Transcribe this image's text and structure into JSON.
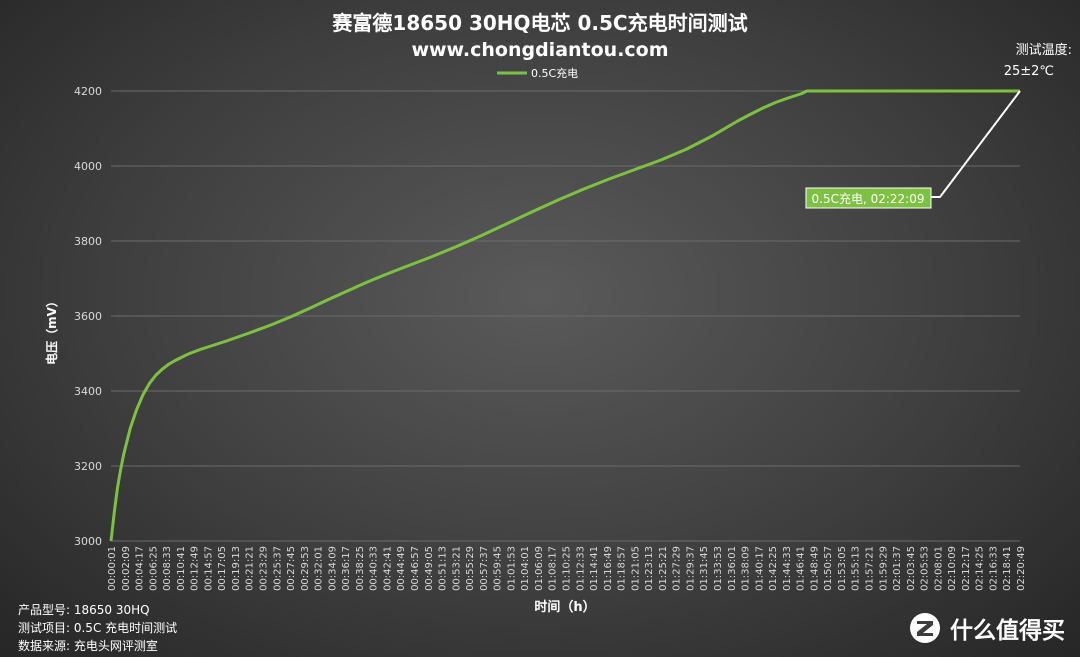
{
  "colors": {
    "series": "#7dc142",
    "grid": "#6b6b6b",
    "label_bg": "#7dc142",
    "leader": "#ffffff"
  },
  "temperature_note": {
    "line1": "测试温度:",
    "line2": "25±2℃"
  },
  "footer": {
    "model": "产品型号:  18650 30HQ",
    "project": "测试项目:  0.5C 充电时间测试",
    "source": "数据来源:  充电头网评测室"
  },
  "watermark": {
    "icon": "zhi-badge-icon",
    "text": "什么值得买"
  },
  "chart_data": {
    "type": "line",
    "title": "赛富德18650 30HQ电芯 0.5C充电时间测试",
    "subtitle": "www.chongdiantou.com",
    "xlabel": "时间（h）",
    "ylabel": "电压（mV）",
    "ylim": [
      3000,
      4200
    ],
    "yticks": [
      3000,
      3200,
      3400,
      3600,
      3800,
      4000,
      4200
    ],
    "grid": true,
    "legend_position": "top",
    "x_tick_labels": [
      "00:00:01",
      "00:02:09",
      "00:04:17",
      "00:06:25",
      "00:08:33",
      "00:10:41",
      "00:12:49",
      "00:14:57",
      "00:17:05",
      "00:19:13",
      "00:21:21",
      "00:23:29",
      "00:25:37",
      "00:27:45",
      "00:29:53",
      "00:32:01",
      "00:34:09",
      "00:36:17",
      "00:38:25",
      "00:40:33",
      "00:42:41",
      "00:44:49",
      "00:46:57",
      "00:49:05",
      "00:51:13",
      "00:53:21",
      "00:55:29",
      "00:57:37",
      "00:59:45",
      "01:01:53",
      "01:04:01",
      "01:06:09",
      "01:08:17",
      "01:10:25",
      "01:12:33",
      "01:14:41",
      "01:16:49",
      "01:18:57",
      "01:21:05",
      "01:23:13",
      "01:25:21",
      "01:27:29",
      "01:29:37",
      "01:31:45",
      "01:33:53",
      "01:36:01",
      "01:38:09",
      "01:40:17",
      "01:42:25",
      "01:44:33",
      "01:46:41",
      "01:48:49",
      "01:50:57",
      "01:53:05",
      "01:55:13",
      "01:57:21",
      "01:59:29",
      "02:01:37",
      "02:03:45",
      "02:05:53",
      "02:08:01",
      "02:10:09",
      "02:12:17",
      "02:14:25",
      "02:16:33",
      "02:18:41",
      "02:20:49"
    ],
    "series": [
      {
        "name": "0.5C充电",
        "x_minutes": [
          0,
          0.5,
          1,
          1.5,
          2,
          3,
          4,
          5,
          6,
          7,
          8,
          9,
          10,
          12,
          14,
          16,
          18,
          20,
          22,
          25,
          28,
          31,
          34,
          37,
          40,
          43,
          46,
          50,
          54,
          58,
          62,
          66,
          70,
          74,
          78,
          82,
          86,
          90,
          94,
          98,
          100,
          102,
          104,
          106,
          108,
          108.8,
          112,
          116,
          120,
          124,
          128,
          132,
          136,
          140,
          142.15
        ],
        "values": [
          3000,
          3075,
          3140,
          3190,
          3232,
          3300,
          3350,
          3390,
          3420,
          3442,
          3458,
          3471,
          3481,
          3498,
          3511,
          3522,
          3533,
          3545,
          3557,
          3576,
          3597,
          3620,
          3644,
          3667,
          3690,
          3711,
          3731,
          3757,
          3785,
          3815,
          3847,
          3879,
          3910,
          3939,
          3966,
          3991,
          4016,
          4045,
          4080,
          4120,
          4138,
          4155,
          4170,
          4182,
          4193,
          4200,
          4200,
          4200,
          4200,
          4200,
          4200,
          4200,
          4200,
          4200,
          4200
        ]
      }
    ],
    "annotation": {
      "text": "0.5C充电, 02:22:09",
      "x_minutes": 142.15,
      "y": 4200
    }
  }
}
